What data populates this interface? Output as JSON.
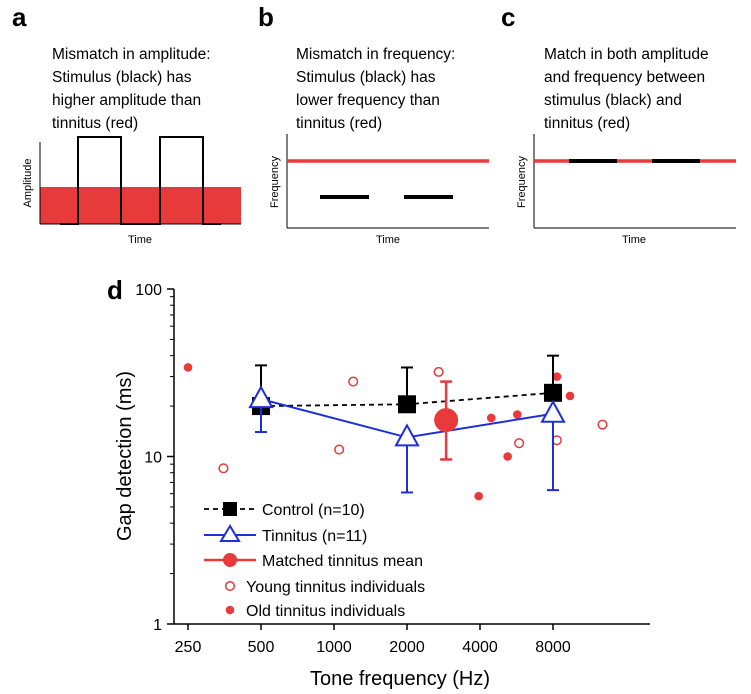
{
  "panels": [
    {
      "letter": "a",
      "lines": [
        "Mismatch in amplitude:",
        "Stimulus (black) has",
        "higher amplitude than",
        "tinnitus (red)"
      ],
      "xlabel": "Time",
      "ylabel": "Amplitude"
    },
    {
      "letter": "b",
      "lines": [
        "Mismatch in frequency:",
        "Stimulus (black) has",
        "lower frequency than",
        "tinnitus (red)"
      ],
      "xlabel": "Time",
      "ylabel": "Frequency"
    },
    {
      "letter": "c",
      "lines": [
        "Match in both amplitude",
        "and frequency between",
        "stimulus (black) and",
        "tinnitus (red)"
      ],
      "xlabel": "Time",
      "ylabel": "Frequency"
    }
  ],
  "colors": {
    "red": "#e8393b",
    "black": "#000000",
    "blue": "#1f2fd6"
  },
  "chart_data": {
    "type": "scatter",
    "panel_letter": "d",
    "xlabel": "Tone frequency (Hz)",
    "ylabel": "Gap detection (ms)",
    "x_scale": "log2",
    "y_scale": "log10",
    "xlim": [
      250,
      16000
    ],
    "ylim": [
      1,
      100
    ],
    "x_ticks": [
      250,
      500,
      1000,
      2000,
      4000,
      8000
    ],
    "x_tick_labels": [
      "250",
      "500",
      "1000",
      "2000",
      "4000",
      "8000"
    ],
    "y_ticks": [
      1,
      10,
      100
    ],
    "y_tick_labels": [
      "1",
      "10",
      "100"
    ],
    "legend_position": "bottom-left",
    "series": [
      {
        "name": "Control (n=10)",
        "style": "black-square-dashed",
        "points": [
          {
            "x": 500,
            "y": 20,
            "err_low": 20,
            "err_high": 35
          },
          {
            "x": 2000,
            "y": 20.5,
            "err_low": 20.5,
            "err_high": 34
          },
          {
            "x": 8000,
            "y": 24,
            "err_low": 24,
            "err_high": 40
          }
        ]
      },
      {
        "name": "Tinnitus (n=11)",
        "style": "blue-open-triangle-solid",
        "points": [
          {
            "x": 500,
            "y": 22,
            "err_low": 14,
            "err_high": 22
          },
          {
            "x": 2000,
            "y": 13,
            "err_low": 6.1,
            "err_high": 13
          },
          {
            "x": 8000,
            "y": 18,
            "err_low": 6.3,
            "err_high": 18
          }
        ]
      },
      {
        "name": "Matched tinnitus mean",
        "style": "red-filled-circle-large",
        "points": [
          {
            "x": 2900,
            "y": 16.5,
            "err_low": 9.6,
            "err_high": 28
          }
        ]
      },
      {
        "name": "Young tinnitus individuals",
        "style": "red-open-circle",
        "points": [
          {
            "x": 350,
            "y": 8.5
          },
          {
            "x": 1050,
            "y": 11
          },
          {
            "x": 1200,
            "y": 28
          },
          {
            "x": 2700,
            "y": 32
          },
          {
            "x": 5800,
            "y": 12
          },
          {
            "x": 8300,
            "y": 12.5
          },
          {
            "x": 12800,
            "y": 15.5
          }
        ]
      },
      {
        "name": "Old tinnitus individuals",
        "style": "red-filled-circle",
        "points": [
          {
            "x": 250,
            "y": 34
          },
          {
            "x": 2050,
            "y": 19.5
          },
          {
            "x": 3950,
            "y": 5.8
          },
          {
            "x": 4450,
            "y": 17
          },
          {
            "x": 5200,
            "y": 10
          },
          {
            "x": 5700,
            "y": 17.8
          },
          {
            "x": 8300,
            "y": 30
          },
          {
            "x": 9400,
            "y": 23
          }
        ]
      }
    ]
  }
}
